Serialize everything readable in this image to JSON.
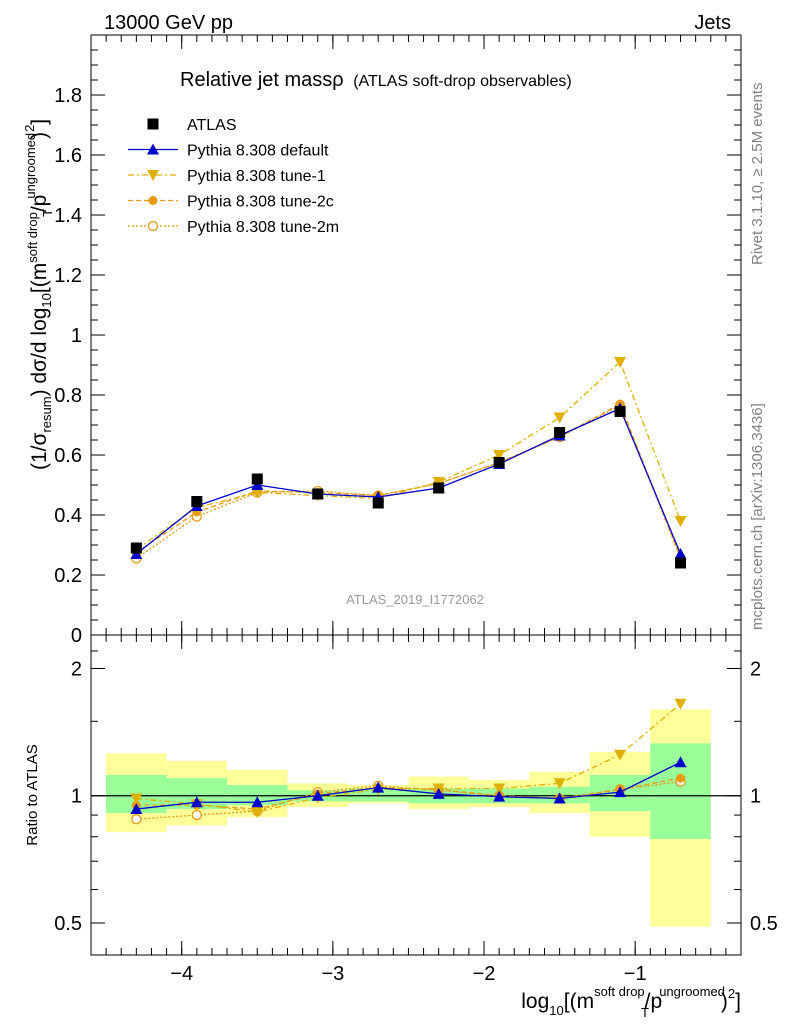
{
  "header": {
    "left": "13000 GeV pp",
    "right": "Jets"
  },
  "side_labels": {
    "rivet": "Rivet 3.1.10, ≥ 2.5M events",
    "mcplots": "mcplots.cern.ch [arXiv:1306.3436]"
  },
  "watermark": "ATLAS_2019_I1772062",
  "colors": {
    "data": "#000000",
    "default": "#0000cc",
    "tune1": "#e0b000",
    "tune2c": "#e69a10",
    "tune2m": "#e69a10",
    "band_inner": "#99ff99",
    "band_outer": "#ffff99"
  },
  "chart_data": [
    {
      "type": "line",
      "title_main": "Relative jet massρ",
      "title_sub": "(ATLAS soft-drop observables)",
      "ylabel": {
        "pre": "(1/σ",
        "sub1": "resum",
        "mid": ") dσ/d log",
        "sub2": "10",
        "mid2": "[(m",
        "sup1": "soft drop",
        "mid3": "/p",
        "sup2": "ungroomed",
        "sub3": "T",
        "end": ")",
        "sup3": "2",
        "close": "]"
      },
      "xlim": [
        -4.6,
        -0.3
      ],
      "ylim": [
        0,
        2.0
      ],
      "yticks": [
        0,
        0.2,
        0.4,
        0.6,
        0.8,
        1,
        1.2,
        1.4,
        1.6,
        1.8
      ],
      "ytick_labels": [
        "0",
        "0.2",
        "0.4",
        "0.6",
        "0.8",
        "1",
        "1.2",
        "1.4",
        "1.6",
        "1.8"
      ],
      "x": [
        -4.3,
        -3.9,
        -3.5,
        -3.1,
        -2.7,
        -2.3,
        -1.9,
        -1.5,
        -1.1,
        -0.7
      ],
      "bin_edges": [
        -4.5,
        -4.1,
        -3.7,
        -3.3,
        -2.9,
        -2.5,
        -2.1,
        -1.7,
        -1.3,
        -0.9,
        -0.5
      ],
      "series": [
        {
          "name": "ATLAS",
          "key": "data",
          "values": [
            0.29,
            0.445,
            0.52,
            0.47,
            0.44,
            0.49,
            0.575,
            0.675,
            0.745,
            0.24
          ]
        },
        {
          "name": "Pythia 8.308 default",
          "key": "default",
          "values": [
            0.27,
            0.43,
            0.5,
            0.47,
            0.46,
            0.49,
            0.57,
            0.665,
            0.755,
            0.27
          ]
        },
        {
          "name": "Pythia 8.308 tune-1",
          "key": "tune1",
          "values": [
            0.285,
            0.425,
            0.475,
            0.465,
            0.455,
            0.51,
            0.6,
            0.725,
            0.91,
            0.38
          ]
        },
        {
          "name": "Pythia 8.308 tune-2c",
          "key": "tune2c",
          "values": [
            0.275,
            0.41,
            0.48,
            0.475,
            0.465,
            0.505,
            0.575,
            0.66,
            0.77,
            0.26
          ]
        },
        {
          "name": "Pythia 8.308 tune-2m",
          "key": "tune2m",
          "values": [
            0.255,
            0.395,
            0.475,
            0.48,
            0.465,
            0.505,
            0.575,
            0.66,
            0.765,
            0.255
          ]
        }
      ]
    },
    {
      "type": "line",
      "ylabel": "Ratio to ATLAS",
      "xlabel": {
        "pre": "log",
        "sub1": "10",
        "mid": "[(m",
        "sup1": "soft drop",
        "mid2": "/p",
        "sup2": "ungroomed",
        "sub2": "T",
        "end": ")",
        "sup3": "2",
        "close": "]"
      },
      "xlim": [
        -4.6,
        -0.3
      ],
      "ylim": [
        0.42,
        2.4
      ],
      "log_y": true,
      "yticks": [
        0.5,
        1,
        2
      ],
      "ytick_labels": [
        "0.5",
        "1",
        "2"
      ],
      "xticks": [
        -4,
        -3,
        -2,
        -1
      ],
      "xtick_labels": [
        "−4",
        "−3",
        "−2",
        "−1"
      ],
      "bands_inner": [
        [
          0.91,
          1.12
        ],
        [
          0.93,
          1.1
        ],
        [
          0.95,
          1.06
        ],
        [
          0.97,
          1.03
        ],
        [
          0.97,
          1.04
        ],
        [
          0.96,
          1.04
        ],
        [
          0.96,
          1.04
        ],
        [
          0.96,
          1.05
        ],
        [
          0.92,
          1.12
        ],
        [
          0.79,
          1.33
        ]
      ],
      "bands_outer": [
        [
          0.82,
          1.26
        ],
        [
          0.85,
          1.21
        ],
        [
          0.89,
          1.15
        ],
        [
          0.94,
          1.07
        ],
        [
          0.96,
          1.06
        ],
        [
          0.93,
          1.11
        ],
        [
          0.94,
          1.09
        ],
        [
          0.91,
          1.14
        ],
        [
          0.8,
          1.27
        ],
        [
          0.49,
          1.6
        ]
      ],
      "series": [
        {
          "name": "Pythia 8.308 default",
          "key": "default",
          "values": [
            0.93,
            0.965,
            0.965,
            1.0,
            1.045,
            1.01,
            0.995,
            0.985,
            1.02,
            1.2
          ]
        },
        {
          "name": "Pythia 8.308 tune-1",
          "key": "tune1",
          "values": [
            0.985,
            0.955,
            0.915,
            0.99,
            1.035,
            1.04,
            1.04,
            1.07,
            1.25,
            1.65
          ]
        },
        {
          "name": "Pythia 8.308 tune-2c",
          "key": "tune2c",
          "values": [
            0.95,
            0.95,
            0.93,
            1.01,
            1.045,
            1.035,
            1.0,
            0.985,
            1.035,
            1.1
          ]
        },
        {
          "name": "Pythia 8.308 tune-2m",
          "key": "tune2m",
          "values": [
            0.88,
            0.9,
            0.92,
            1.02,
            1.055,
            1.03,
            1.0,
            0.985,
            1.035,
            1.08
          ]
        }
      ]
    }
  ]
}
